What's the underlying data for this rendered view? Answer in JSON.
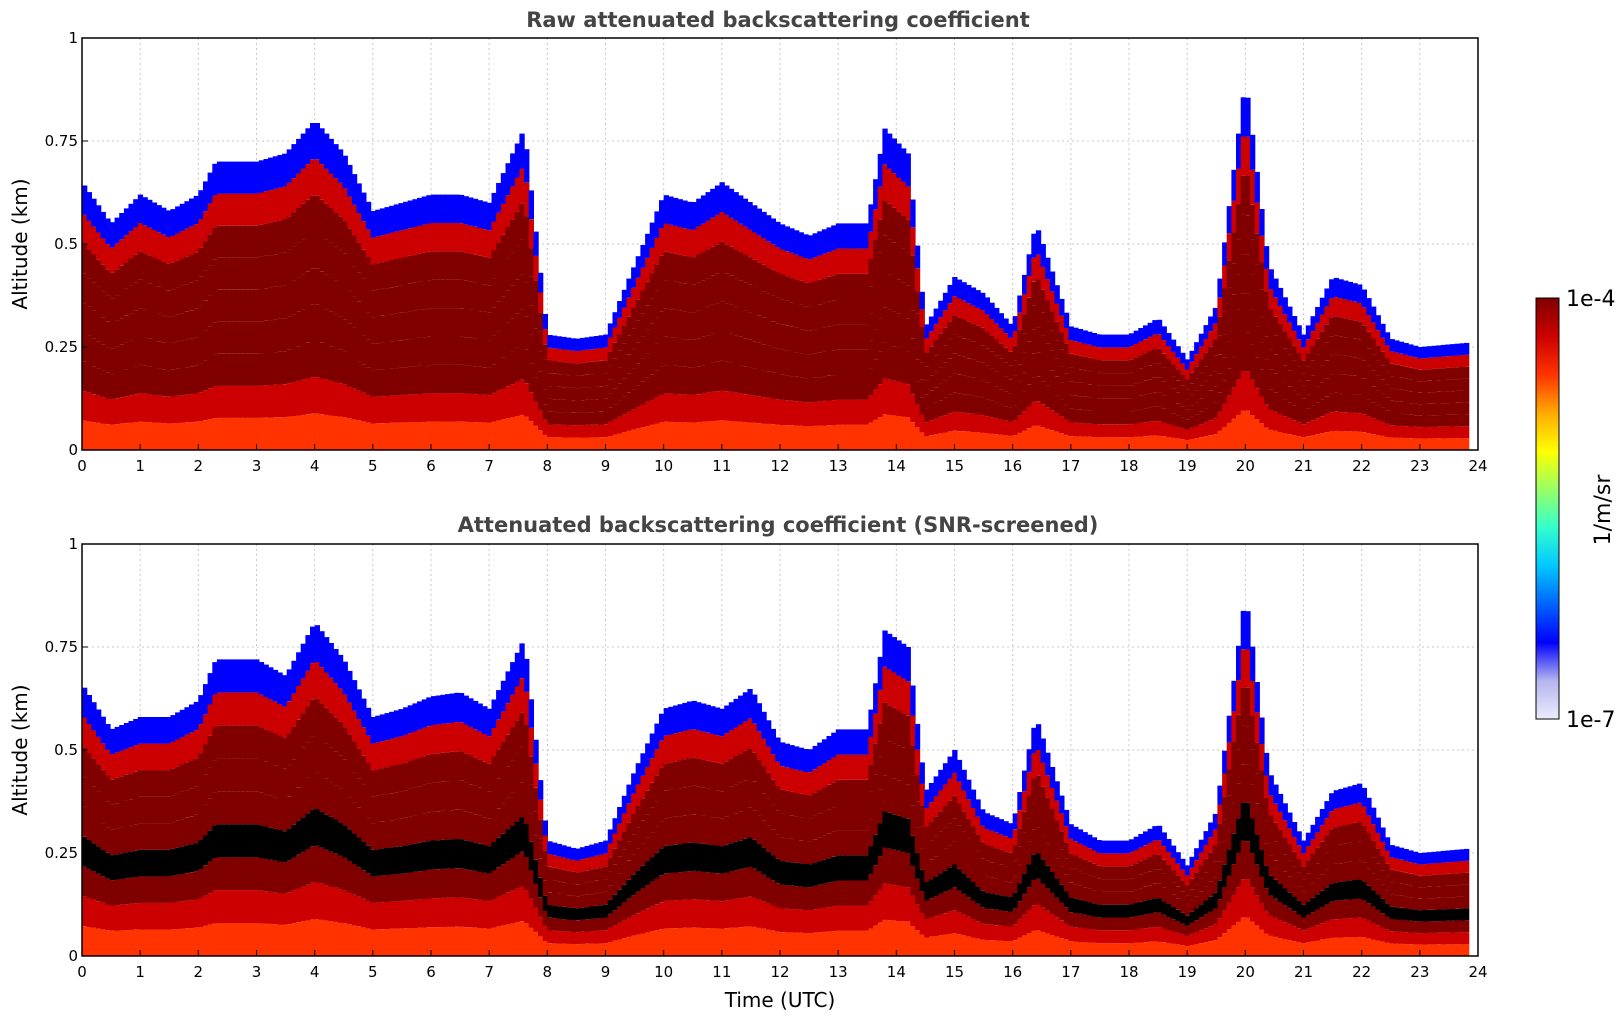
{
  "chart_data": [
    {
      "type": "heatmap",
      "title": "Raw attenuated backscattering coefficient",
      "xlabel": "",
      "ylabel": "Altitude (km)",
      "xlim": [
        0,
        24
      ],
      "ylim": [
        0,
        1
      ],
      "xticks": [
        "0",
        "1",
        "2",
        "3",
        "4",
        "5",
        "6",
        "7",
        "8",
        "9",
        "10",
        "11",
        "12",
        "13",
        "14",
        "15",
        "16",
        "17",
        "18",
        "19",
        "20",
        "21",
        "22",
        "23",
        "24"
      ],
      "yticks": [
        "0",
        "0.25",
        "0.5",
        "0.75",
        "1"
      ],
      "grid": true,
      "colormap": "jet",
      "color_scale": "log",
      "layer_top_km": [
        {
          "t": 0.0,
          "h": 0.65
        },
        {
          "t": 0.5,
          "h": 0.55
        },
        {
          "t": 1.0,
          "h": 0.62
        },
        {
          "t": 1.5,
          "h": 0.58
        },
        {
          "t": 2.0,
          "h": 0.62
        },
        {
          "t": 2.3,
          "h": 0.7
        },
        {
          "t": 3.0,
          "h": 0.7
        },
        {
          "t": 3.5,
          "h": 0.72
        },
        {
          "t": 4.0,
          "h": 0.8
        },
        {
          "t": 4.5,
          "h": 0.72
        },
        {
          "t": 5.0,
          "h": 0.58
        },
        {
          "t": 5.5,
          "h": 0.6
        },
        {
          "t": 6.0,
          "h": 0.62
        },
        {
          "t": 6.5,
          "h": 0.62
        },
        {
          "t": 7.0,
          "h": 0.6
        },
        {
          "t": 7.6,
          "h": 0.78
        },
        {
          "t": 8.0,
          "h": 0.28
        },
        {
          "t": 8.5,
          "h": 0.27
        },
        {
          "t": 9.0,
          "h": 0.28
        },
        {
          "t": 9.5,
          "h": 0.45
        },
        {
          "t": 10.0,
          "h": 0.62
        },
        {
          "t": 10.5,
          "h": 0.6
        },
        {
          "t": 11.0,
          "h": 0.65
        },
        {
          "t": 11.5,
          "h": 0.6
        },
        {
          "t": 12.0,
          "h": 0.55
        },
        {
          "t": 12.5,
          "h": 0.52
        },
        {
          "t": 13.0,
          "h": 0.55
        },
        {
          "t": 13.5,
          "h": 0.55
        },
        {
          "t": 13.8,
          "h": 0.78
        },
        {
          "t": 14.2,
          "h": 0.72
        },
        {
          "t": 14.5,
          "h": 0.3
        },
        {
          "t": 15.0,
          "h": 0.42
        },
        {
          "t": 15.5,
          "h": 0.38
        },
        {
          "t": 16.0,
          "h": 0.3
        },
        {
          "t": 16.4,
          "h": 0.55
        },
        {
          "t": 17.0,
          "h": 0.3
        },
        {
          "t": 17.5,
          "h": 0.28
        },
        {
          "t": 18.0,
          "h": 0.28
        },
        {
          "t": 18.5,
          "h": 0.32
        },
        {
          "t": 19.0,
          "h": 0.22
        },
        {
          "t": 19.5,
          "h": 0.35
        },
        {
          "t": 20.0,
          "h": 0.9
        },
        {
          "t": 20.4,
          "h": 0.45
        },
        {
          "t": 21.0,
          "h": 0.28
        },
        {
          "t": 21.5,
          "h": 0.42
        },
        {
          "t": 22.0,
          "h": 0.4
        },
        {
          "t": 22.5,
          "h": 0.27
        },
        {
          "t": 23.0,
          "h": 0.25
        },
        {
          "t": 23.8,
          "h": 0.26
        }
      ]
    },
    {
      "type": "heatmap",
      "title": "Attenuated backscattering coefficient (SNR-screened)",
      "xlabel": "Time (UTC)",
      "ylabel": "Altitude (km)",
      "xlim": [
        0,
        24
      ],
      "ylim": [
        0,
        1
      ],
      "xticks": [
        "0",
        "1",
        "2",
        "3",
        "4",
        "5",
        "6",
        "7",
        "8",
        "9",
        "10",
        "11",
        "12",
        "13",
        "14",
        "15",
        "16",
        "17",
        "18",
        "19",
        "20",
        "21",
        "22",
        "23",
        "24"
      ],
      "yticks": [
        "0",
        "0.25",
        "0.5",
        "0.75",
        "1"
      ],
      "grid": true,
      "colormap": "jet",
      "color_scale": "log",
      "layer_top_km": [
        {
          "t": 0.0,
          "h": 0.66
        },
        {
          "t": 0.5,
          "h": 0.55
        },
        {
          "t": 1.0,
          "h": 0.58
        },
        {
          "t": 1.5,
          "h": 0.58
        },
        {
          "t": 2.0,
          "h": 0.62
        },
        {
          "t": 2.3,
          "h": 0.72
        },
        {
          "t": 3.0,
          "h": 0.72
        },
        {
          "t": 3.5,
          "h": 0.68
        },
        {
          "t": 4.0,
          "h": 0.81
        },
        {
          "t": 4.5,
          "h": 0.72
        },
        {
          "t": 5.0,
          "h": 0.58
        },
        {
          "t": 5.5,
          "h": 0.6
        },
        {
          "t": 6.0,
          "h": 0.63
        },
        {
          "t": 6.5,
          "h": 0.64
        },
        {
          "t": 7.0,
          "h": 0.6
        },
        {
          "t": 7.6,
          "h": 0.77
        },
        {
          "t": 8.0,
          "h": 0.28
        },
        {
          "t": 8.5,
          "h": 0.26
        },
        {
          "t": 9.0,
          "h": 0.28
        },
        {
          "t": 9.5,
          "h": 0.45
        },
        {
          "t": 10.0,
          "h": 0.6
        },
        {
          "t": 10.5,
          "h": 0.62
        },
        {
          "t": 11.0,
          "h": 0.6
        },
        {
          "t": 11.5,
          "h": 0.65
        },
        {
          "t": 12.0,
          "h": 0.52
        },
        {
          "t": 12.5,
          "h": 0.5
        },
        {
          "t": 13.0,
          "h": 0.55
        },
        {
          "t": 13.5,
          "h": 0.55
        },
        {
          "t": 13.8,
          "h": 0.79
        },
        {
          "t": 14.2,
          "h": 0.75
        },
        {
          "t": 14.5,
          "h": 0.4
        },
        {
          "t": 15.0,
          "h": 0.5
        },
        {
          "t": 15.5,
          "h": 0.35
        },
        {
          "t": 16.0,
          "h": 0.32
        },
        {
          "t": 16.4,
          "h": 0.58
        },
        {
          "t": 17.0,
          "h": 0.32
        },
        {
          "t": 17.5,
          "h": 0.28
        },
        {
          "t": 18.0,
          "h": 0.28
        },
        {
          "t": 18.5,
          "h": 0.32
        },
        {
          "t": 19.0,
          "h": 0.22
        },
        {
          "t": 19.5,
          "h": 0.35
        },
        {
          "t": 20.0,
          "h": 0.88
        },
        {
          "t": 20.4,
          "h": 0.45
        },
        {
          "t": 21.0,
          "h": 0.28
        },
        {
          "t": 21.5,
          "h": 0.4
        },
        {
          "t": 22.0,
          "h": 0.42
        },
        {
          "t": 22.5,
          "h": 0.27
        },
        {
          "t": 23.0,
          "h": 0.25
        },
        {
          "t": 23.8,
          "h": 0.26
        }
      ]
    }
  ],
  "colorbar": {
    "label": "1/m/sr",
    "max_label": "1e-4",
    "min_label": "1e-7",
    "colors": [
      "#ececfb",
      "#b4b4f0",
      "#0000ff",
      "#0064ff",
      "#00c8ff",
      "#33ffcc",
      "#99ff66",
      "#ffff00",
      "#ffaa00",
      "#ff3300",
      "#cc0000",
      "#800000"
    ]
  }
}
